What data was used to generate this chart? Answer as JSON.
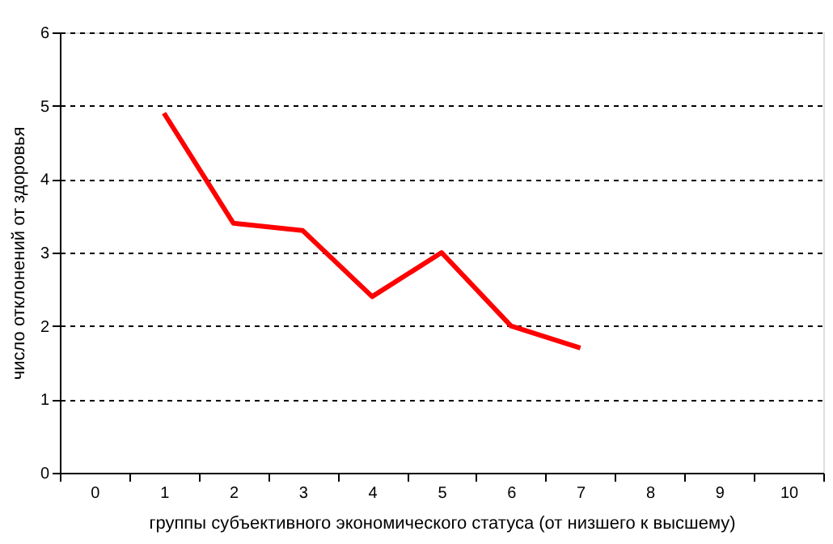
{
  "chart_data": {
    "type": "line",
    "xlabel": "группы субъективного экономического статуса (от низшего к высшему)",
    "ylabel": "число отклонений от здоровья",
    "categories": [
      "0",
      "1",
      "2",
      "3",
      "4",
      "5",
      "6",
      "7",
      "8",
      "9",
      "10"
    ],
    "series": [
      {
        "color": "#ff0000",
        "values": [
          null,
          4.9,
          3.4,
          3.3,
          2.4,
          3.0,
          2.0,
          1.7,
          null,
          null,
          null
        ]
      }
    ],
    "ylim": [
      0,
      6
    ],
    "yticks": [
      0,
      1,
      2,
      3,
      4,
      5,
      6
    ],
    "grid": "y",
    "line_style": "solid",
    "marker": "none",
    "legend": false
  }
}
